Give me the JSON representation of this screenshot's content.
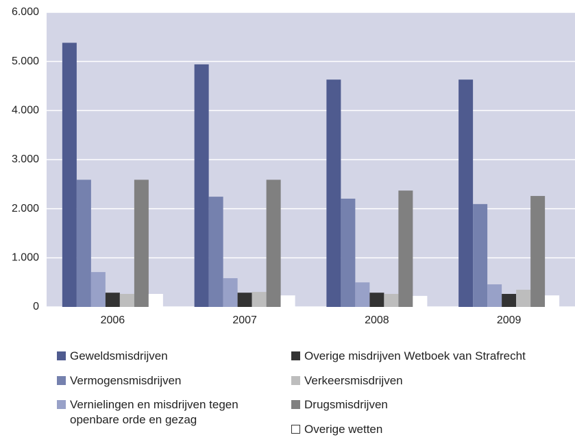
{
  "chart_data": {
    "type": "bar",
    "categories": [
      "2006",
      "2007",
      "2008",
      "2009"
    ],
    "series": [
      {
        "name": "Geweldsmisdrijven",
        "color": "#4f5b8f",
        "values": [
          5380,
          4940,
          4630,
          4630
        ]
      },
      {
        "name": "Vermogensmisdrijven",
        "color": "#7581ae",
        "values": [
          2590,
          2245,
          2205,
          2095
        ]
      },
      {
        "name": "Vernielingen en misdrijven tegen openbare orde en gezag",
        "color": "#98a1c8",
        "values": [
          710,
          585,
          500,
          460
        ]
      },
      {
        "name": "Overige misdrijven Wetboek van Strafrecht",
        "color": "#333333",
        "values": [
          290,
          290,
          290,
          265
        ]
      },
      {
        "name": "Verkeersmisdrijven",
        "color": "#bdbdbd",
        "values": [
          265,
          305,
          265,
          350
        ]
      },
      {
        "name": "Drugsmisdrijven",
        "color": "#808080",
        "values": [
          2590,
          2590,
          2370,
          2260
        ]
      },
      {
        "name": "Overige wetten",
        "color": "#ffffff",
        "values": [
          265,
          235,
          225,
          235
        ]
      }
    ],
    "ylim": [
      0,
      6000
    ],
    "yticks": [
      0,
      {
        "value": 1000,
        "label": "1.000"
      },
      {
        "value": 2000,
        "label": "2.000"
      },
      {
        "value": 3000,
        "label": "3.000"
      },
      {
        "value": 4000,
        "label": "4.000"
      },
      {
        "value": 5000,
        "label": "5.000"
      },
      {
        "value": 6000,
        "label": "6.000"
      }
    ],
    "grid": true
  }
}
